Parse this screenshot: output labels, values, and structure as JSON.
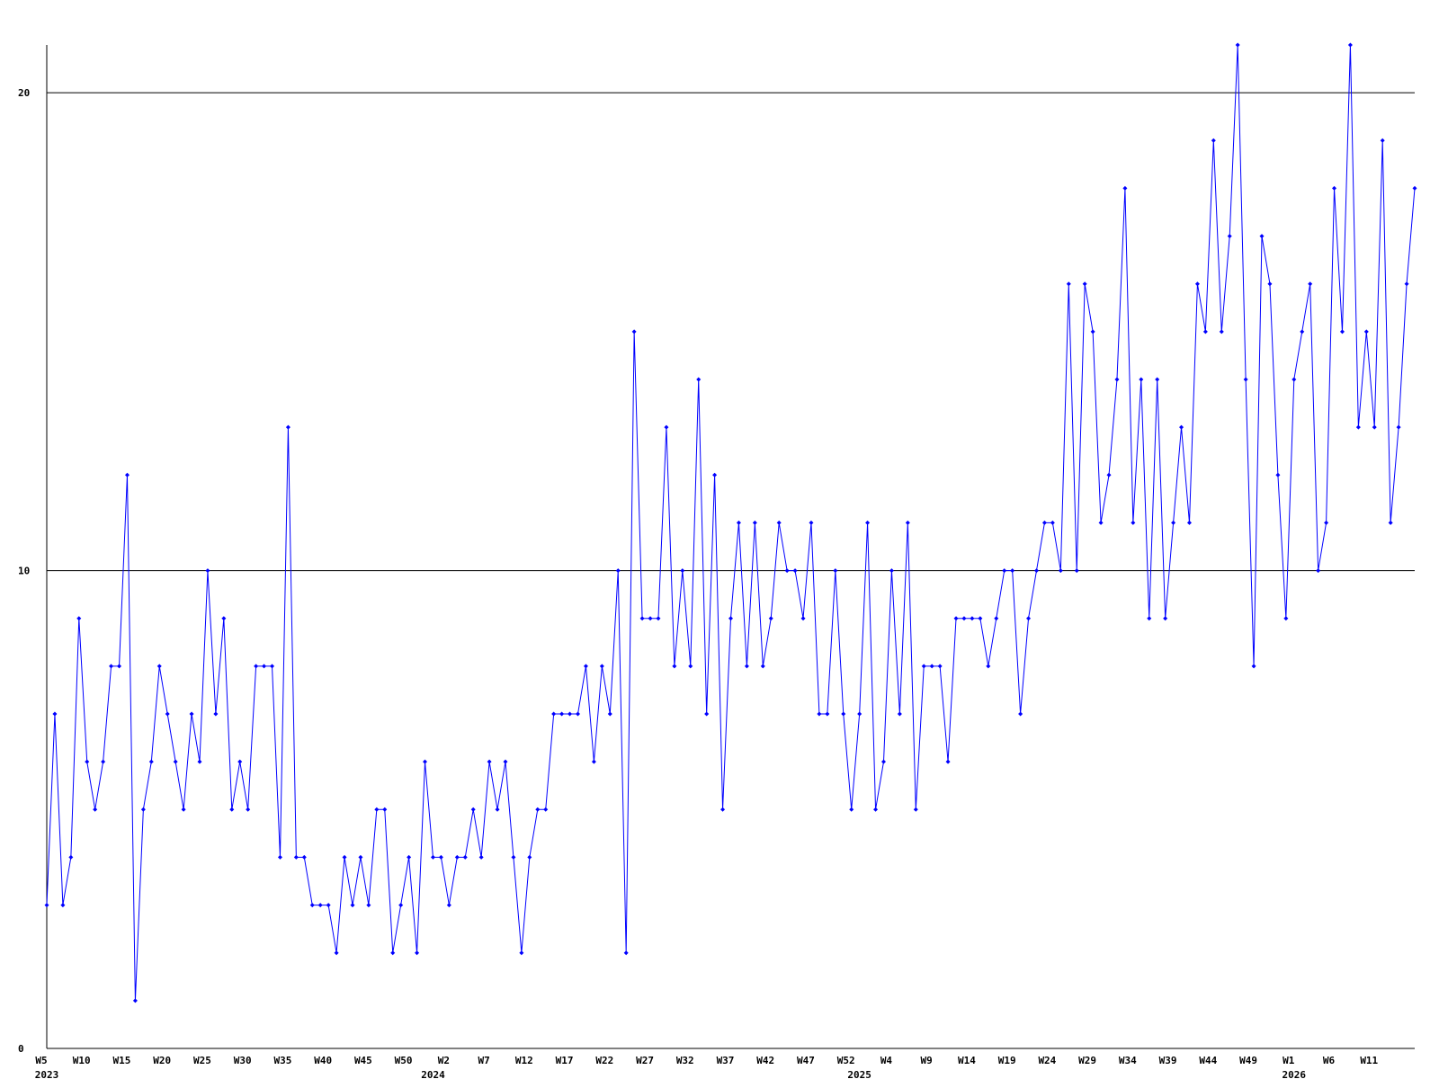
{
  "chart_data": {
    "type": "line",
    "categories": [
      "W5",
      null,
      null,
      null,
      null,
      "W10",
      null,
      null,
      null,
      null,
      "W15",
      null,
      null,
      null,
      null,
      "W20",
      null,
      null,
      null,
      null,
      "W25",
      null,
      null,
      null,
      null,
      "W30",
      null,
      null,
      null,
      null,
      "W35",
      null,
      null,
      null,
      null,
      "W40",
      null,
      null,
      null,
      null,
      "W45",
      null,
      null,
      null,
      null,
      "W50",
      null,
      null,
      null,
      null,
      "W2",
      null,
      null,
      null,
      null,
      "W7",
      null,
      null,
      null,
      null,
      "W12",
      null,
      null,
      null,
      null,
      "W17",
      null,
      null,
      null,
      null,
      "W22",
      null,
      null,
      null,
      null,
      "W27",
      null,
      null,
      null,
      null,
      "W32",
      null,
      null,
      null,
      null,
      "W37",
      null,
      null,
      null,
      null,
      "W42",
      null,
      null,
      null,
      null,
      "W47",
      null,
      null,
      null,
      null,
      "W52",
      null,
      null,
      null,
      null,
      "W4",
      null,
      null,
      null,
      null,
      "W9",
      null,
      null,
      null,
      null,
      "W14",
      null,
      null,
      null,
      null,
      "W19",
      null,
      null,
      null,
      null,
      "W24",
      null,
      null,
      null,
      null,
      "W29",
      null,
      null,
      null,
      null,
      "W34",
      null,
      null,
      null,
      null,
      "W39",
      null,
      null,
      null,
      null,
      "W44",
      null,
      null,
      null,
      null,
      "W49",
      null,
      null,
      null,
      null,
      "W1",
      null,
      null,
      null,
      null,
      "W6",
      null,
      null,
      null,
      null,
      "W11",
      null,
      null,
      null,
      null,
      null
    ],
    "years": [
      {
        "index": 0,
        "label": "2023"
      },
      {
        "index": 48,
        "label": "2024"
      },
      {
        "index": 101,
        "label": "2025"
      },
      {
        "index": 155,
        "label": "2026"
      }
    ],
    "series": [
      {
        "color": "#0000ff",
        "values": [
          3,
          7,
          3,
          4,
          9,
          6,
          5,
          6,
          8,
          8,
          12,
          1,
          5,
          6,
          8,
          7,
          6,
          5,
          7,
          6,
          10,
          7,
          9,
          5,
          6,
          5,
          8,
          8,
          8,
          4,
          13,
          4,
          4,
          3,
          3,
          3,
          2,
          4,
          3,
          4,
          3,
          5,
          5,
          2,
          3,
          4,
          2,
          6,
          4,
          4,
          3,
          4,
          4,
          5,
          4,
          6,
          5,
          6,
          4,
          2,
          4,
          5,
          5,
          7,
          7,
          7,
          7,
          8,
          6,
          8,
          7,
          10,
          2,
          15,
          9,
          9,
          9,
          13,
          8,
          10,
          8,
          14,
          7,
          12,
          5,
          9,
          11,
          8,
          11,
          8,
          9,
          11,
          10,
          10,
          9,
          11,
          7,
          7,
          10,
          7,
          5,
          7,
          11,
          5,
          6,
          10,
          7,
          11,
          5,
          8,
          8,
          8,
          6,
          9,
          9,
          9,
          9,
          8,
          9,
          10,
          10,
          7,
          9,
          10,
          11,
          11,
          10,
          16,
          10,
          16,
          15,
          11,
          12,
          14,
          18,
          11,
          14,
          9,
          14,
          9,
          11,
          13,
          11,
          16,
          15,
          19,
          15,
          17,
          21,
          14,
          8,
          17,
          16,
          12,
          9,
          14,
          15,
          16,
          10,
          11,
          18,
          15,
          21,
          13,
          15,
          13,
          19,
          11,
          13,
          16,
          18
        ]
      }
    ],
    "ylim": [
      0,
      21
    ],
    "yticks": [
      0,
      10,
      20
    ],
    "grid": true
  }
}
